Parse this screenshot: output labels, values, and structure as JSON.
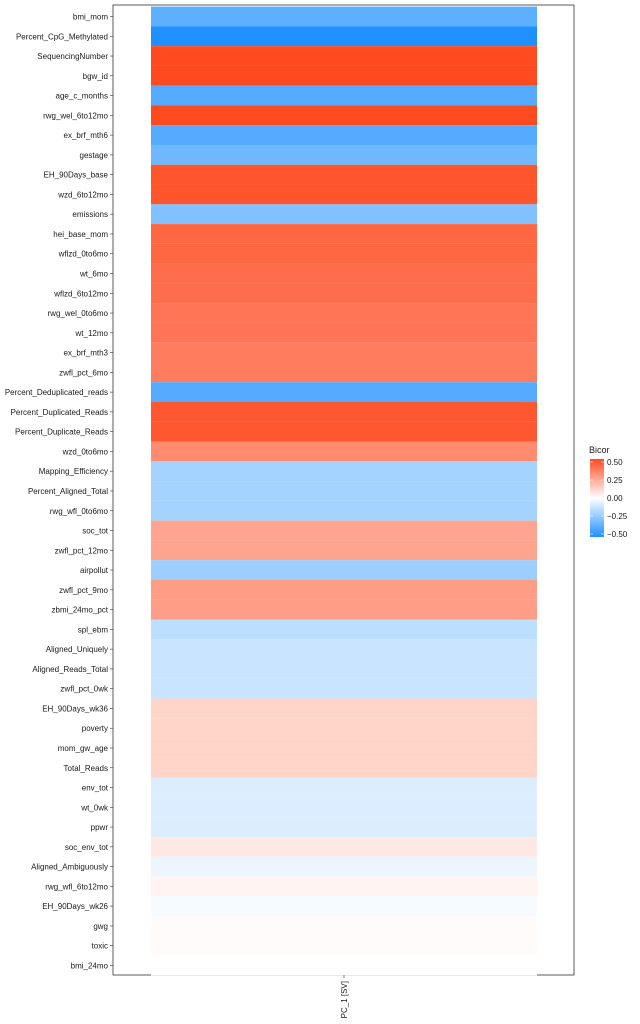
{
  "chart_data": {
    "type": "heatmap",
    "x_categories": [
      "PC_1 [SV]"
    ],
    "y_categories": [
      "bmi_mom",
      "Percent_CpG_Methylated",
      "SequencingNumber",
      "bgw_id",
      "age_c_months",
      "rwg_wel_6to12mo",
      "ex_brf_mth6",
      "gestage",
      "EH_90Days_base",
      "wzd_6to12mo",
      "emissions",
      "hei_base_mom",
      "wflzd_0to6mo",
      "wt_6mo",
      "wflzd_6to12mo",
      "rwg_wel_0to6mo",
      "wt_12mo",
      "ex_brf_mth3",
      "zwfl_pct_6mo",
      "Percent_Deduplicated_reads",
      "Percent_Duplicated_Reads",
      "Percent_Duplicate_Reads",
      "wzd_0to6mo",
      "Mapping_Efficiency",
      "Percent_Aligned_Total",
      "rwg_wfl_0to6mo",
      "soc_tot",
      "zwfl_pct_12mo",
      "airpollut",
      "zwfl_pct_9mo",
      "zbmi_24mo_pct",
      "spl_ebm",
      "Aligned_Uniquely",
      "Aligned_Reads_Total",
      "zwfl_pct_0wk",
      "EH_90Days_wk36",
      "poverty",
      "mom_gw_age",
      "Total_Reads",
      "env_tot",
      "wt_0wk",
      "ppwr",
      "soc_env_tot",
      "Aligned_Ambiguously",
      "rwg_wfl_6to12mo",
      "EH_90Days_wk26",
      "gwg",
      "toxic",
      "bmi_24mo"
    ],
    "values": [
      -0.36,
      -0.5,
      0.5,
      0.5,
      -0.38,
      0.5,
      -0.38,
      -0.32,
      0.47,
      0.47,
      -0.28,
      0.42,
      0.42,
      0.4,
      0.4,
      0.38,
      0.38,
      0.36,
      0.36,
      -0.38,
      0.46,
      0.46,
      0.32,
      -0.2,
      -0.2,
      -0.2,
      0.25,
      0.25,
      -0.22,
      0.27,
      0.27,
      -0.15,
      -0.12,
      -0.12,
      -0.12,
      0.12,
      0.12,
      0.12,
      0.12,
      -0.08,
      -0.08,
      -0.08,
      0.06,
      -0.04,
      0.03,
      -0.02,
      0.01,
      0.01,
      0.0
    ],
    "legend": {
      "title": "Bicor",
      "ticks": [
        0.5,
        0.25,
        0.0,
        -0.25,
        -0.5
      ],
      "tick_labels": [
        "0.50",
        "0.25",
        "0.00",
        "−0.25",
        "−0.50"
      ],
      "placement": "right"
    },
    "color_scale": {
      "low": "#1e90ff",
      "mid": "#ffffff",
      "high": "#ff4a1f",
      "limits": [
        -0.5,
        0.5
      ]
    },
    "grid": false
  }
}
